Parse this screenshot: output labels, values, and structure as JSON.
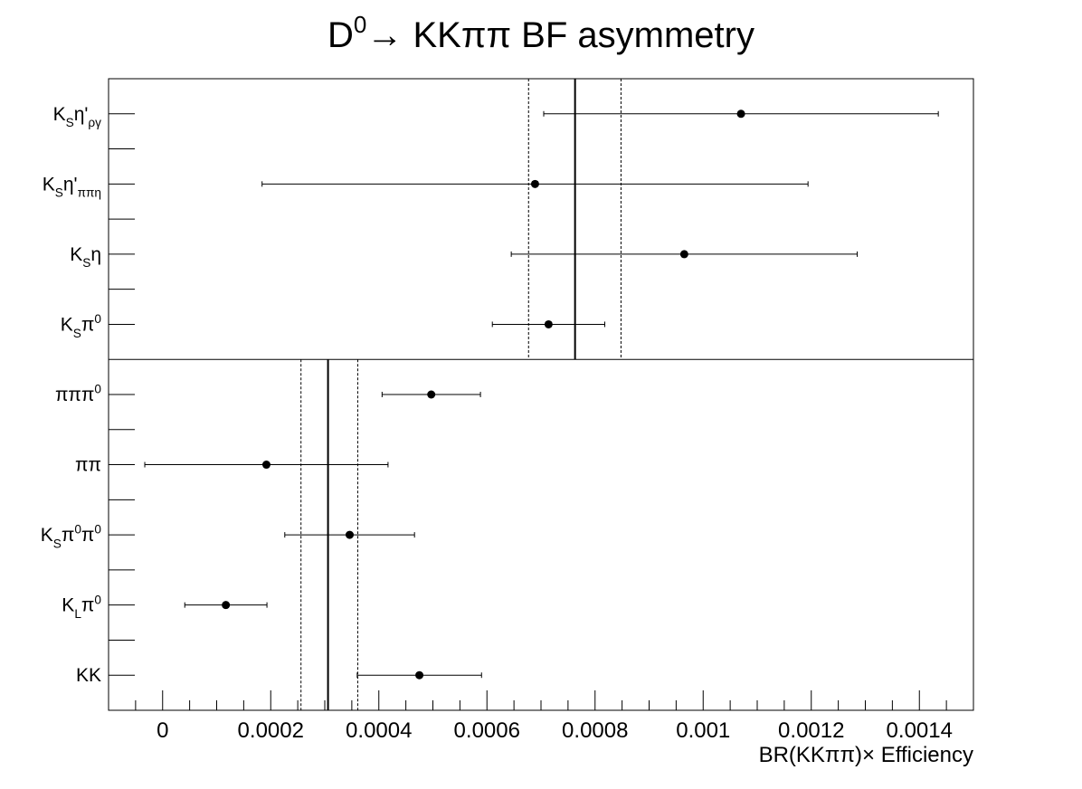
{
  "chart_data": {
    "type": "errorbar",
    "title": [
      {
        "text": "D"
      },
      {
        "text": "0",
        "shift": "super"
      },
      {
        "text": "→ KKππ BF asymmetry"
      }
    ],
    "xlabel": "BR(KKππ)× Efficiency",
    "xlim": [
      -0.0001,
      0.0015
    ],
    "xticks": [
      0,
      0.0002,
      0.0004,
      0.0006,
      0.0008,
      0.001,
      0.0012,
      0.0014
    ],
    "xminorticks": [
      -5e-05,
      5e-05,
      0.0001,
      0.00015,
      0.00025,
      0.0003,
      0.00035,
      0.00045,
      0.0005,
      0.00055,
      0.00065,
      0.0007,
      0.00075,
      0.00085,
      0.0009,
      0.00095,
      0.00105,
      0.0011,
      0.00115,
      0.00125,
      0.0013,
      0.00135,
      0.00145
    ],
    "color": "#000000",
    "panels": [
      {
        "categories": [
          [
            {
              "text": "K"
            },
            {
              "text": "S",
              "shift": "sub"
            },
            {
              "text": "η'"
            },
            {
              "text": "ργ",
              "shift": "sub"
            }
          ],
          [
            {
              "text": "K"
            },
            {
              "text": "S",
              "shift": "sub"
            },
            {
              "text": "η'"
            },
            {
              "text": "ππη",
              "shift": "sub"
            }
          ],
          [
            {
              "text": "K"
            },
            {
              "text": "S",
              "shift": "sub"
            },
            {
              "text": "η"
            }
          ],
          [
            {
              "text": "K"
            },
            {
              "text": "S",
              "shift": "sub"
            },
            {
              "text": "π"
            },
            {
              "text": "0",
              "shift": "super"
            }
          ]
        ],
        "values": [
          0.00107,
          0.000689,
          0.000965,
          0.000714
        ],
        "errors": [
          0.000365,
          0.000505,
          0.00032,
          0.000104
        ],
        "mean": 0.000763,
        "band": [
          0.000677,
          0.000848
        ]
      },
      {
        "categories": [
          [
            {
              "text": "πππ"
            },
            {
              "text": "0",
              "shift": "super"
            }
          ],
          [
            {
              "text": "ππ"
            }
          ],
          [
            {
              "text": "K"
            },
            {
              "text": "S",
              "shift": "sub"
            },
            {
              "text": "π"
            },
            {
              "text": "0",
              "shift": "super"
            },
            {
              "text": "π"
            },
            {
              "text": "0",
              "shift": "super"
            }
          ],
          [
            {
              "text": "K"
            },
            {
              "text": "L",
              "shift": "sub"
            },
            {
              "text": "π"
            },
            {
              "text": "0",
              "shift": "super"
            }
          ],
          [
            {
              "text": "KK"
            }
          ]
        ],
        "values": [
          0.000497,
          0.000192,
          0.000346,
          0.000117,
          0.000475
        ],
        "errors": [
          9.1e-05,
          0.000225,
          0.00012,
          7.6e-05,
          0.000115
        ],
        "mean": 0.000306,
        "band": [
          0.000256,
          0.000361
        ]
      }
    ]
  }
}
